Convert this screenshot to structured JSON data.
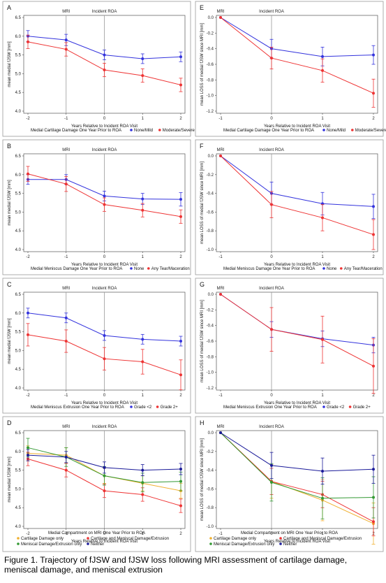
{
  "caption": "Figure 1. Trajectory of fJSW and fJSW loss following MRI assessment of cartilage damage, meniscal damage, and meniscal extrusion",
  "colors": {
    "blue": "#3333dd",
    "red": "#ee3333",
    "orange": "#f0b030",
    "green": "#339933",
    "navy": "#1a1a99",
    "darkred": "#cc2222"
  },
  "chart_data": [
    {
      "letter": "A",
      "type": "line",
      "ylabel": "mean medial fJSW [mm]",
      "xlabel": "Years Relative to Incident ROA Visit",
      "x": [
        -2,
        -1,
        0,
        1,
        2
      ],
      "xlim": [
        -2,
        2
      ],
      "ylim": [
        4.0,
        6.5
      ],
      "yticks": [
        "6.5",
        "6.0",
        "5.5",
        "5.0",
        "4.5",
        "4.0"
      ],
      "ticks": [
        6.5,
        6.0,
        5.5,
        5.0,
        4.5,
        4.0
      ],
      "markers": [
        {
          "x": -1,
          "label": "MRI"
        },
        {
          "x": 0,
          "label": "Incident ROA"
        }
      ],
      "legend_title": "Medial Cartilage Damage One Year Prior to ROA",
      "series": [
        {
          "name": "None/Mild",
          "color": "#3333dd",
          "values": [
            6.0,
            5.9,
            5.5,
            5.4,
            5.45
          ],
          "err": [
            0.15,
            0.15,
            0.13,
            0.13,
            0.13
          ]
        },
        {
          "name": "Moderate/Severe",
          "color": "#ee3333",
          "values": [
            5.85,
            5.65,
            5.1,
            4.95,
            4.7
          ],
          "err": [
            0.18,
            0.18,
            0.18,
            0.18,
            0.18
          ]
        }
      ]
    },
    {
      "letter": "E",
      "type": "line",
      "ylabel": "mean LOSS of medial fJSW since MRI [mm]",
      "xlabel": "Years Relative to Incident ROA Visit",
      "x": [
        -1,
        0,
        1,
        2
      ],
      "xlim": [
        -1,
        2
      ],
      "ylim": [
        -1.2,
        0.0
      ],
      "yticks": [
        "0.0",
        "-0.2",
        "-0.4",
        "-0.6",
        "-0.8",
        "-1.0",
        "-1.2"
      ],
      "ticks": [
        0.0,
        -0.2,
        -0.4,
        -0.6,
        -0.8,
        -1.0,
        -1.2
      ],
      "markers": [
        {
          "x": -1,
          "label": "MRI"
        },
        {
          "x": 0,
          "label": "Incident ROA"
        }
      ],
      "legend_title": "Medial Cartilage Damage One Year Prior to ROA",
      "series": [
        {
          "name": "None/Mild",
          "color": "#3333dd",
          "values": [
            0.0,
            -0.4,
            -0.5,
            -0.48
          ],
          "err": [
            0.0,
            0.12,
            0.12,
            0.12
          ]
        },
        {
          "name": "Moderate/Severe",
          "color": "#ee3333",
          "values": [
            0.0,
            -0.52,
            -0.68,
            -0.97
          ],
          "err": [
            0.0,
            0.14,
            0.15,
            0.18
          ]
        }
      ]
    },
    {
      "letter": "B",
      "type": "line",
      "ylabel": "mean medial fJSW [mm]",
      "xlabel": "Years Relative to Incident ROA Visit",
      "x": [
        -2,
        -1,
        0,
        1,
        2
      ],
      "xlim": [
        -2,
        2
      ],
      "ylim": [
        4.0,
        6.5
      ],
      "yticks": [
        "6.5",
        "6.0",
        "5.5",
        "5.0",
        "4.5",
        "4.0"
      ],
      "ticks": [
        6.5,
        6.0,
        5.5,
        5.0,
        4.5,
        4.0
      ],
      "markers": [
        {
          "x": -1,
          "label": "MRI"
        },
        {
          "x": 0,
          "label": "Incident ROA"
        }
      ],
      "legend_title": "Medial Meniscus Damage One Year Prior to ROA",
      "series": [
        {
          "name": "None",
          "color": "#3333dd",
          "values": [
            5.87,
            5.87,
            5.43,
            5.35,
            5.34
          ],
          "err": [
            0.13,
            0.13,
            0.13,
            0.15,
            0.18
          ]
        },
        {
          "name": "Any Tear/Maceration",
          "color": "#ee3333",
          "values": [
            6.02,
            5.75,
            5.2,
            5.05,
            4.88
          ],
          "err": [
            0.2,
            0.2,
            0.18,
            0.18,
            0.18
          ]
        }
      ]
    },
    {
      "letter": "F",
      "type": "line",
      "ylabel": "mean LOSS of medial fJSW since MRI [mm]",
      "xlabel": "Years Relative to Incident ROA Visit",
      "x": [
        -1,
        0,
        1,
        2
      ],
      "xlim": [
        -1,
        2
      ],
      "ylim": [
        -1.0,
        0.0
      ],
      "yticks": [
        "0.0",
        "-0.2",
        "-0.4",
        "-0.6",
        "-0.8",
        "-1.0"
      ],
      "ticks": [
        0.0,
        -0.2,
        -0.4,
        -0.6,
        -0.8,
        -1.0
      ],
      "markers": [
        {
          "x": -1,
          "label": "MRI"
        },
        {
          "x": 0,
          "label": "Incident ROA"
        }
      ],
      "legend_title": "Medial Meniscus Damage One Year Prior to ROA",
      "series": [
        {
          "name": "None",
          "color": "#3333dd",
          "values": [
            0.0,
            -0.4,
            -0.51,
            -0.54
          ],
          "err": [
            0.0,
            0.12,
            0.12,
            0.13
          ]
        },
        {
          "name": "Any Tear/Maceration",
          "color": "#ee3333",
          "values": [
            0.0,
            -0.52,
            -0.66,
            -0.84
          ],
          "err": [
            0.0,
            0.14,
            0.14,
            0.16
          ]
        }
      ]
    },
    {
      "letter": "C",
      "type": "line",
      "ylabel": "mean medial fJSW [mm]",
      "xlabel": "Years Relative to Incident ROA Visit",
      "x": [
        -2,
        -1,
        0,
        1,
        2
      ],
      "xlim": [
        -2,
        2
      ],
      "ylim": [
        4.0,
        6.5
      ],
      "yticks": [
        "6.5",
        "6.0",
        "5.5",
        "5.0",
        "4.5",
        "4.0"
      ],
      "ticks": [
        6.5,
        6.0,
        5.5,
        5.0,
        4.5,
        4.0
      ],
      "markers": [
        {
          "x": -1,
          "label": "MRI"
        },
        {
          "x": 0,
          "label": "Incident ROA"
        }
      ],
      "legend_title": "Medial Meniscus Extrusion One Year Prior to ROA",
      "series": [
        {
          "name": "Grade <2",
          "color": "#3333dd",
          "values": [
            6.0,
            5.87,
            5.4,
            5.3,
            5.25
          ],
          "err": [
            0.13,
            0.13,
            0.13,
            0.13,
            0.13
          ]
        },
        {
          "name": "Grade 2+",
          "color": "#ee3333",
          "values": [
            5.42,
            5.25,
            4.78,
            4.7,
            4.35
          ],
          "err": [
            0.3,
            0.3,
            0.3,
            0.33,
            0.4
          ]
        }
      ]
    },
    {
      "letter": "G",
      "type": "line",
      "ylabel": "mean LOSS of medial fJSW since MRI [mm]",
      "xlabel": "Years Relative to Incident ROA Visit",
      "x": [
        -1,
        0,
        1,
        2
      ],
      "xlim": [
        -1,
        2
      ],
      "ylim": [
        -1.2,
        0.0
      ],
      "yticks": [
        "0.0",
        "-0.2",
        "-0.4",
        "-0.6",
        "-0.8",
        "-1.0",
        "-1.2"
      ],
      "ticks": [
        0.0,
        -0.2,
        -0.4,
        -0.6,
        -0.8,
        -1.0,
        -1.2
      ],
      "markers": [
        {
          "x": -1,
          "label": "MRI"
        },
        {
          "x": 0,
          "label": "Incident ROA"
        }
      ],
      "legend_title": "Medial Meniscus Extrusion One Year Prior to ROA",
      "series": [
        {
          "name": "Grade <2",
          "color": "#3333dd",
          "values": [
            0.0,
            -0.45,
            -0.57,
            -0.65
          ],
          "err": [
            0.0,
            0.1,
            0.1,
            0.1
          ]
        },
        {
          "name": "Grade 2+",
          "color": "#ee3333",
          "values": [
            0.0,
            -0.45,
            -0.58,
            -0.92
          ],
          "err": [
            0.0,
            0.28,
            0.3,
            0.35
          ]
        }
      ]
    },
    {
      "letter": "D",
      "type": "line",
      "ylabel": "mean medial fJSW [mm]",
      "xlabel": "Years Relative to Incident ROA Visit",
      "x": [
        -2,
        -1,
        0,
        1,
        2
      ],
      "xlim": [
        -2,
        2
      ],
      "ylim": [
        4.0,
        6.5
      ],
      "yticks": [
        "6.5",
        "6.0",
        "5.5",
        "5.0",
        "4.5",
        "4.0"
      ],
      "ticks": [
        6.5,
        6.0,
        5.5,
        5.0,
        4.5,
        4.0
      ],
      "markers": [
        {
          "x": -1,
          "label": "MRI"
        },
        {
          "x": 0,
          "label": "Incident ROA"
        }
      ],
      "legend_title": "Medial Compartment on MRI One Year Prior to ROA",
      "series": [
        {
          "name": "Cartilage Damage only",
          "color": "#f0b030",
          "values": [
            5.95,
            5.9,
            5.35,
            5.15,
            4.95
          ],
          "err": [
            0.2,
            0.2,
            0.2,
            0.2,
            0.2
          ]
        },
        {
          "name": "Cartilage and Meniscal Damage/Extrusion",
          "color": "#ee3333",
          "values": [
            5.8,
            5.5,
            4.95,
            4.85,
            4.55
          ],
          "err": [
            0.18,
            0.18,
            0.18,
            0.18,
            0.18
          ]
        },
        {
          "name": "Meniscal Damage/Extrusion only",
          "color": "#339933",
          "values": [
            6.1,
            5.85,
            5.35,
            5.17,
            5.2
          ],
          "err": [
            0.25,
            0.25,
            0.25,
            0.25,
            0.25
          ]
        },
        {
          "name": "Neither",
          "color": "#1a1a99",
          "values": [
            5.9,
            5.85,
            5.57,
            5.5,
            5.53
          ],
          "err": [
            0.15,
            0.15,
            0.15,
            0.15,
            0.15
          ]
        }
      ]
    },
    {
      "letter": "H",
      "type": "line",
      "ylabel": "mean LOSS of medial fJSW since MRI [mm]",
      "xlabel": "Years Relative to Incident ROA Visit",
      "x": [
        -1,
        0,
        1,
        2
      ],
      "xlim": [
        -1,
        2
      ],
      "ylim": [
        -1.0,
        0.0
      ],
      "yticks": [
        "0.0",
        "-0.2",
        "-0.4",
        "-0.6",
        "-0.8",
        "-1.0"
      ],
      "ticks": [
        0.0,
        -0.2,
        -0.4,
        -0.6,
        -0.8,
        -1.0
      ],
      "markers": [
        {
          "x": -1,
          "label": "MRI"
        },
        {
          "x": 0,
          "label": "Incident ROA"
        }
      ],
      "legend_title": "Medial Compartment on MRI One Year Prior to ROA",
      "series": [
        {
          "name": "Cartilage Damage only",
          "color": "#f0b030",
          "values": [
            0.0,
            -0.52,
            -0.72,
            -0.97
          ],
          "err": [
            0.0,
            0.18,
            0.22,
            0.22
          ]
        },
        {
          "name": "Cartilage and Meniscal Damage/Extrusion",
          "color": "#ee3333",
          "values": [
            0.0,
            -0.52,
            -0.66,
            -0.95
          ],
          "err": [
            0.0,
            0.14,
            0.14,
            0.15
          ]
        },
        {
          "name": "Meniscal Damage/Extrusion only",
          "color": "#339933",
          "values": [
            0.0,
            -0.53,
            -0.7,
            -0.69
          ],
          "err": [
            0.0,
            0.2,
            0.22,
            0.22
          ]
        },
        {
          "name": "Neither",
          "color": "#1a1a99",
          "values": [
            0.0,
            -0.35,
            -0.41,
            -0.39
          ],
          "err": [
            0.0,
            0.14,
            0.14,
            0.15
          ]
        }
      ]
    }
  ]
}
